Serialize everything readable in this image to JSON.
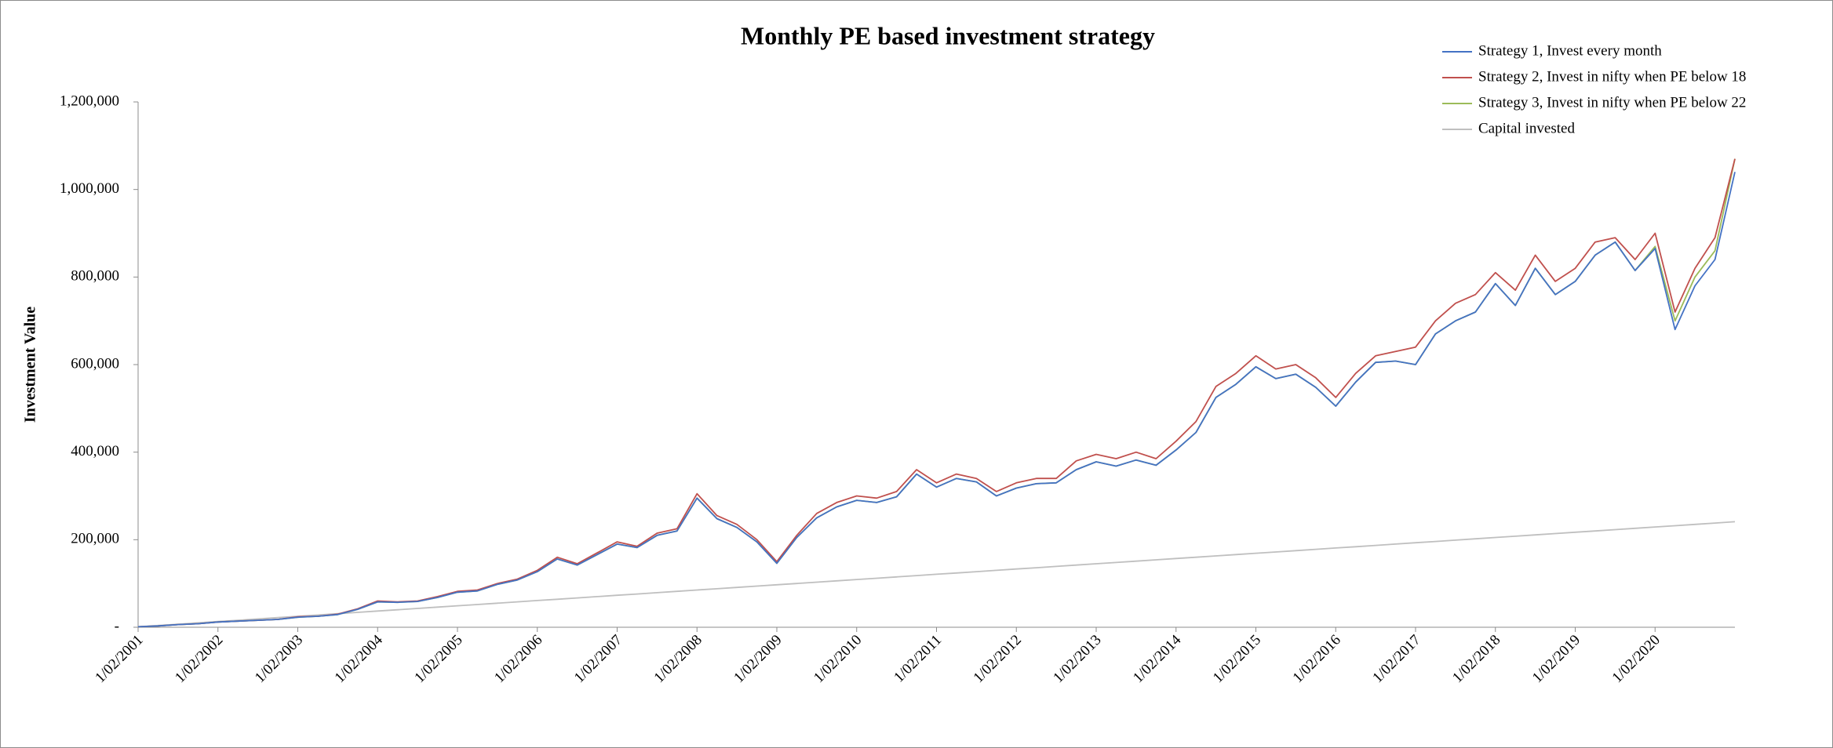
{
  "chart_data": {
    "type": "line",
    "title": "Monthly PE based investment strategy",
    "y_label": "Investment Value",
    "legend": "top-right",
    "categories": [
      "1/02/2001",
      null,
      null,
      null,
      "1/02/2002",
      null,
      null,
      null,
      "1/02/2003",
      null,
      null,
      null,
      "1/02/2004",
      null,
      null,
      null,
      "1/02/2005",
      null,
      null,
      null,
      "1/02/2006",
      null,
      null,
      null,
      "1/02/2007",
      null,
      null,
      null,
      "1/02/2008",
      null,
      null,
      null,
      "1/02/2009",
      null,
      null,
      null,
      "1/02/2010",
      null,
      null,
      null,
      "1/02/2011",
      null,
      null,
      null,
      "1/02/2012",
      null,
      null,
      null,
      "1/02/2013",
      null,
      null,
      null,
      "1/02/2014",
      null,
      null,
      null,
      "1/02/2015",
      null,
      null,
      null,
      "1/02/2016",
      null,
      null,
      null,
      "1/02/2017",
      null,
      null,
      null,
      "1/02/2018",
      null,
      null,
      null,
      "1/02/2019",
      null,
      null,
      null,
      "1/02/2020",
      null,
      null,
      null,
      null
    ],
    "ylim": [
      0,
      1200000
    ],
    "yticks": [
      {
        "value": 0,
        "label": "-"
      },
      {
        "value": 200000,
        "label": "200,000"
      },
      {
        "value": 400000,
        "label": "400,000"
      },
      {
        "value": 600000,
        "label": "600,000"
      },
      {
        "value": 800000,
        "label": "800,000"
      },
      {
        "value": 1000000,
        "label": "1,000,000"
      },
      {
        "value": 1200000,
        "label": "1,200,000"
      }
    ],
    "series": [
      {
        "name": "Strategy 1, Invest every month",
        "color": "#4472c4",
        "values": [
          1000,
          3000,
          6000,
          8000,
          12000,
          14000,
          16000,
          18000,
          23000,
          25000,
          29000,
          41000,
          58000,
          57000,
          59000,
          68000,
          80000,
          83000,
          98000,
          108000,
          127000,
          156000,
          142000,
          166000,
          190000,
          182000,
          210000,
          220000,
          295000,
          248000,
          228000,
          195000,
          146000,
          205000,
          250000,
          275000,
          290000,
          285000,
          298000,
          350000,
          320000,
          340000,
          332000,
          300000,
          318000,
          328000,
          330000,
          360000,
          378000,
          368000,
          382000,
          370000,
          405000,
          445000,
          525000,
          555000,
          595000,
          568000,
          578000,
          548000,
          505000,
          560000,
          605000,
          608000,
          600000,
          670000,
          700000,
          720000,
          785000,
          735000,
          820000,
          760000,
          790000,
          850000,
          880000,
          815000,
          865000,
          680000,
          780000,
          840000,
          1040000
        ]
      },
      {
        "name": "Strategy 2, Invest in nifty when PE below 18",
        "color": "#c0504d",
        "values": [
          1000,
          3000,
          6000,
          8000,
          12000,
          14000,
          16000,
          18000,
          24000,
          25000,
          30000,
          42000,
          60000,
          58000,
          60000,
          70000,
          82000,
          85000,
          100000,
          110000,
          130000,
          160000,
          145000,
          170000,
          195000,
          185000,
          215000,
          225000,
          305000,
          255000,
          235000,
          200000,
          150000,
          210000,
          260000,
          285000,
          300000,
          295000,
          310000,
          360000,
          330000,
          350000,
          340000,
          310000,
          330000,
          340000,
          340000,
          380000,
          395000,
          385000,
          400000,
          385000,
          425000,
          470000,
          550000,
          580000,
          620000,
          590000,
          600000,
          570000,
          525000,
          580000,
          620000,
          630000,
          640000,
          700000,
          740000,
          760000,
          810000,
          770000,
          850000,
          790000,
          820000,
          880000,
          890000,
          840000,
          900000,
          720000,
          820000,
          890000,
          1070000
        ]
      },
      {
        "name": "Strategy 3, Invest in nifty when PE below 22",
        "color": "#9bbb59",
        "values": [
          1000,
          3000,
          6000,
          8000,
          12000,
          14000,
          16000,
          18000,
          23000,
          25000,
          29000,
          41000,
          58000,
          57000,
          59000,
          68000,
          80000,
          83000,
          98000,
          108000,
          127000,
          156000,
          142000,
          166000,
          190000,
          182000,
          210000,
          220000,
          295000,
          248000,
          228000,
          195000,
          146000,
          205000,
          250000,
          275000,
          290000,
          285000,
          298000,
          350000,
          320000,
          340000,
          332000,
          300000,
          318000,
          328000,
          330000,
          360000,
          378000,
          368000,
          382000,
          370000,
          405000,
          445000,
          525000,
          555000,
          595000,
          568000,
          578000,
          548000,
          505000,
          560000,
          605000,
          608000,
          600000,
          670000,
          700000,
          720000,
          785000,
          735000,
          820000,
          760000,
          790000,
          850000,
          880000,
          815000,
          870000,
          700000,
          800000,
          860000,
          1070000
        ]
      },
      {
        "name": "Capital invested",
        "color": "#bfbfbf",
        "values": [
          1000,
          4000,
          7000,
          10000,
          13000,
          16000,
          19000,
          22000,
          25000,
          28000,
          31000,
          34000,
          37000,
          40000,
          43000,
          46000,
          49000,
          52000,
          55000,
          58000,
          61000,
          64000,
          67000,
          70000,
          73000,
          76000,
          79000,
          82000,
          85000,
          88000,
          91000,
          94000,
          97000,
          100000,
          103000,
          106000,
          109000,
          112000,
          115000,
          118000,
          121000,
          124000,
          127000,
          130000,
          133000,
          136000,
          139000,
          142000,
          145000,
          148000,
          151000,
          154000,
          157000,
          160000,
          163000,
          166000,
          169000,
          172000,
          175000,
          178000,
          181000,
          184000,
          187000,
          190000,
          193000,
          196000,
          199000,
          202000,
          205000,
          208000,
          211000,
          214000,
          217000,
          220000,
          223000,
          226000,
          229000,
          232000,
          235000,
          238000,
          241000
        ]
      }
    ]
  }
}
